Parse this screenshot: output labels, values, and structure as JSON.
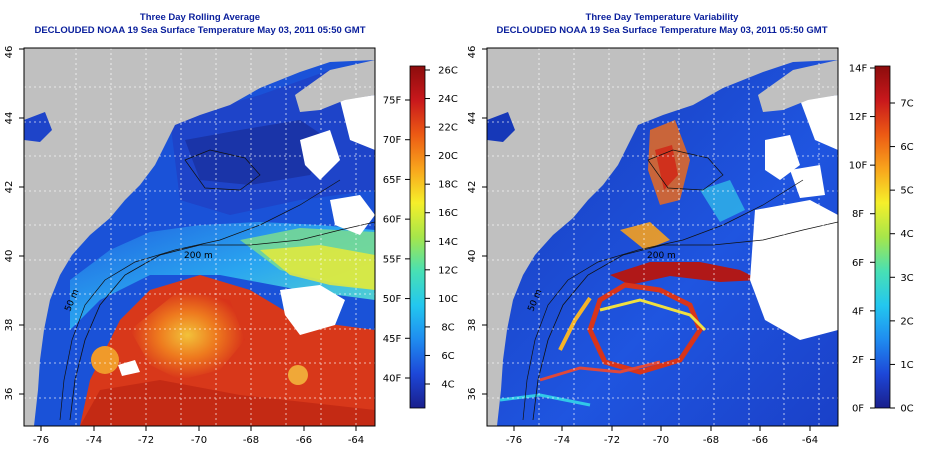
{
  "panels": [
    {
      "title": "Three Day Rolling Average",
      "subtitle": "DECLOUDED NOAA 19 Sea Surface Temperature May 03, 2011 05:50 GMT",
      "x_ticks": [
        "-76",
        "-74",
        "-72",
        "-70",
        "-68",
        "-66",
        "-64"
      ],
      "y_ticks": [
        "36",
        "38",
        "40",
        "42",
        "44",
        "46"
      ],
      "contour_labels": [
        "200 m",
        "50 m"
      ],
      "colorbar": {
        "stops": [
          "#1a1f8c",
          "#1d47d8",
          "#1f8cf0",
          "#23c7ef",
          "#48e0b4",
          "#a6e64a",
          "#f5ef2a",
          "#f8a41c",
          "#ec5a14",
          "#c8181c",
          "#8c0c0c"
        ],
        "left_labels": [
          "4C",
          "6C",
          "8C",
          "10C",
          "12C",
          "14C",
          "16C",
          "18C",
          "20C",
          "22C",
          "24C",
          "26C"
        ],
        "right_labels": [
          "40F",
          "45F",
          "50F",
          "55F",
          "60F",
          "65F",
          "70F",
          "75F"
        ]
      }
    },
    {
      "title": "Three Day Temperature Variability",
      "subtitle": "DECLOUDED NOAA 19 Sea Surface Temperature May 03, 2011 05:50 GMT",
      "x_ticks": [
        "-76",
        "-74",
        "-72",
        "-70",
        "-68",
        "-66",
        "-64"
      ],
      "y_ticks": [
        "36",
        "38",
        "40",
        "42",
        "44",
        "46"
      ],
      "contour_labels": [
        "200 m",
        "50 m"
      ],
      "colorbar": {
        "stops": [
          "#1a1f8c",
          "#1d47d8",
          "#1f8cf0",
          "#23c7ef",
          "#48e0b4",
          "#a6e64a",
          "#f5ef2a",
          "#f8a41c",
          "#ec5a14",
          "#c8181c",
          "#8c0c0c"
        ],
        "left_labels": [
          "0F",
          "2F",
          "4F",
          "6F",
          "8F",
          "10F",
          "12F",
          "14F"
        ],
        "right_labels": [
          "0C",
          "1C",
          "2C",
          "3C",
          "4C",
          "5C",
          "6C",
          "7C"
        ]
      }
    }
  ]
}
